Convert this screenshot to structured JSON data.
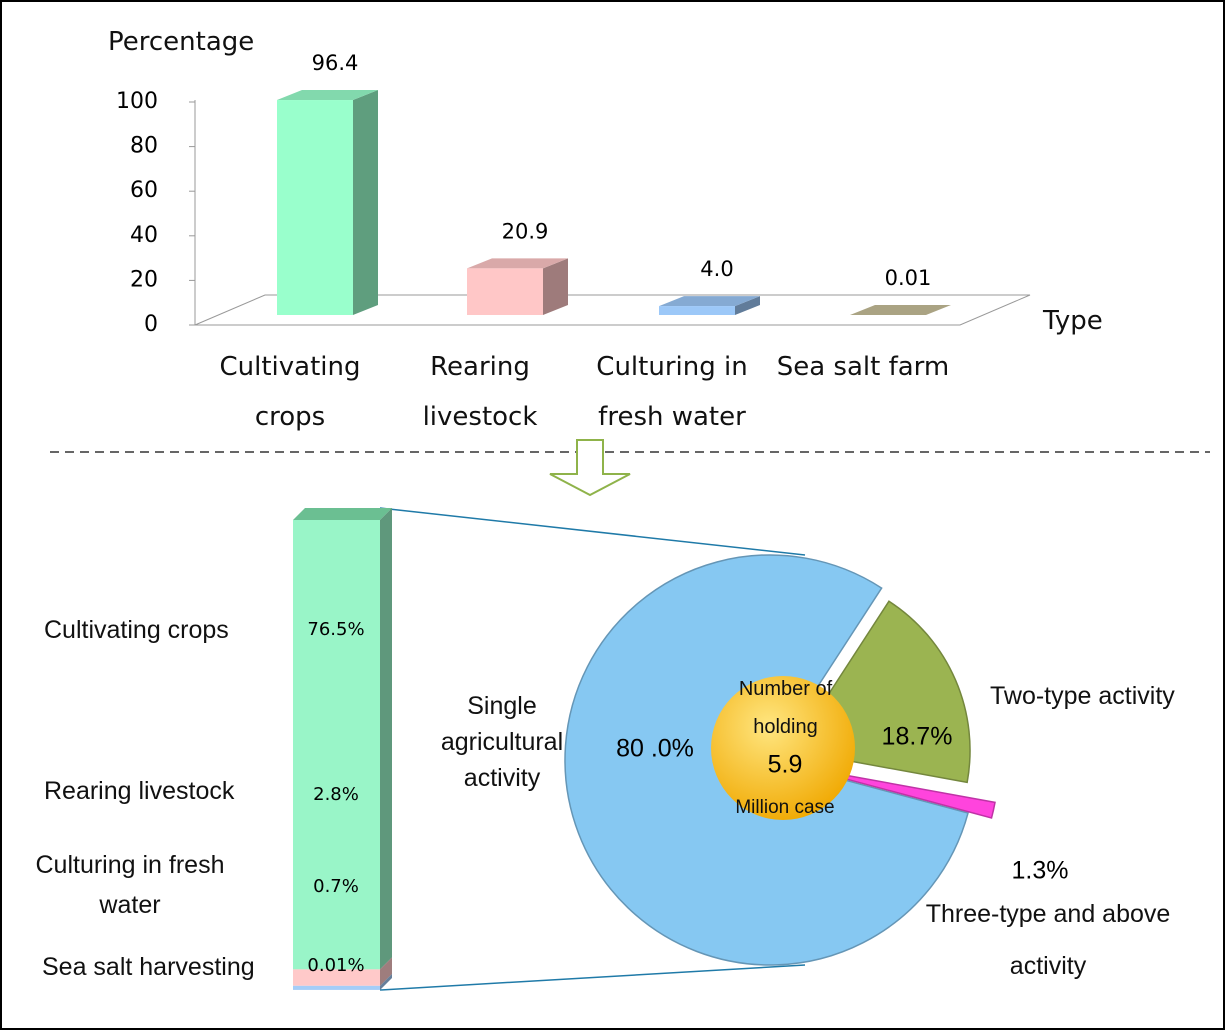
{
  "chart_data": [
    {
      "type": "bar3d",
      "y_label": "Percentage",
      "x_label": "Type",
      "categories": [
        "Cultivating crops",
        "Rearing livestock",
        "Culturing in fresh water",
        "Sea salt farm"
      ],
      "values": [
        96.4,
        20.9,
        4.0,
        0.01
      ],
      "value_labels": [
        "96.4",
        "20.9",
        "4.0",
        "0.01"
      ],
      "colors": [
        "#99ffcc",
        "#ffc7c7",
        "#9cc8f8",
        "#c8c09a"
      ],
      "ylim": [
        0,
        100
      ],
      "yticks": [
        0,
        20,
        40,
        60,
        80,
        100
      ]
    },
    {
      "type": "stacked_bar",
      "categories": [
        "Cultivating crops",
        "Rearing livestock",
        "Culturing in fresh water",
        "Sea salt harvesting"
      ],
      "values": [
        76.5,
        2.8,
        0.7,
        0.01
      ],
      "value_labels": [
        "76.5%",
        "2.8%",
        "0.7%",
        "0.01%"
      ],
      "colors": [
        "#99f5c8",
        "#ffc9c9",
        "#a5cdf8",
        "#e6dcec"
      ]
    },
    {
      "type": "pie",
      "labels": [
        "Single agricultural activity",
        "Two-type activity",
        "Three-type and above activity"
      ],
      "values": [
        80.0,
        18.7,
        1.3
      ],
      "value_labels": [
        "80 .0%",
        "18.7%",
        "1.3%"
      ],
      "colors": [
        "#86c8f2",
        "#9bb451",
        "#ff44dd"
      ],
      "center_label": "Number of holding",
      "center_value": 5.9,
      "center_unit": "Million case"
    }
  ]
}
